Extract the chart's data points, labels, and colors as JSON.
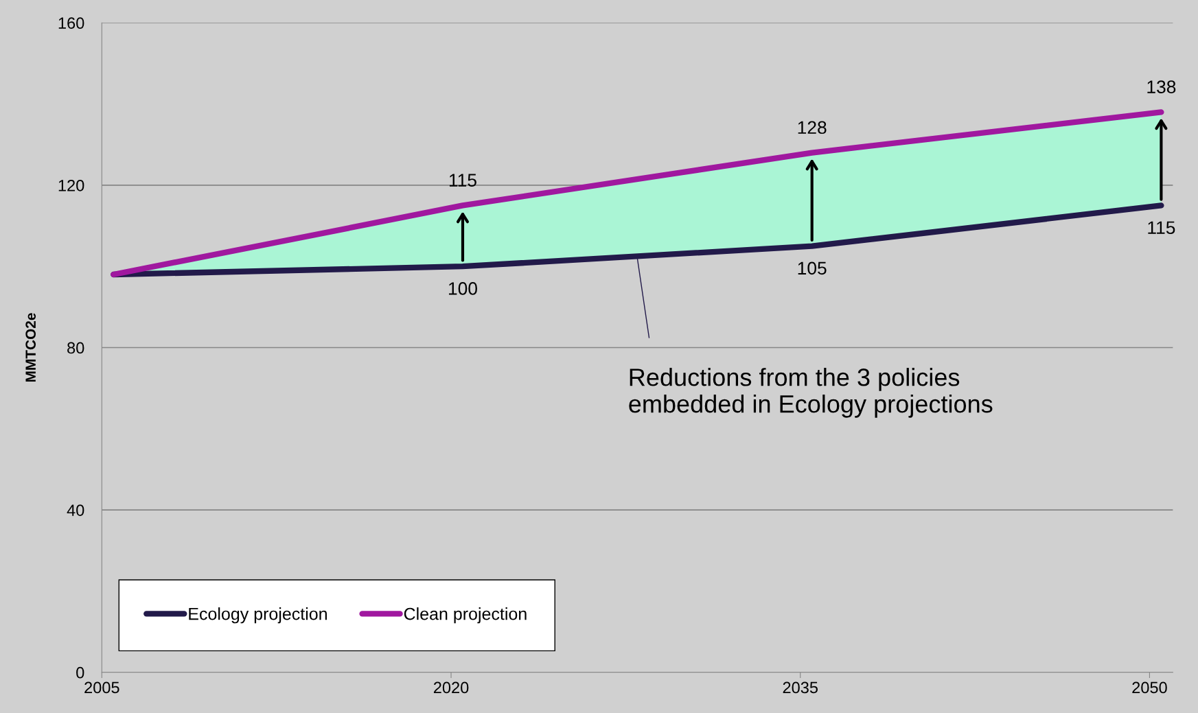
{
  "chart_data": {
    "type": "line",
    "ylabel": "MMTCO2e",
    "x": [
      2005.5,
      2020.5,
      2035.5,
      2050.5
    ],
    "xlim": [
      2005,
      2051
    ],
    "xticks": [
      2005,
      2020,
      2035,
      2050
    ],
    "ylim": [
      0,
      160
    ],
    "yticks": [
      0,
      40,
      80,
      120,
      160
    ],
    "grid": "y",
    "legend": "bottom left",
    "marker": "none",
    "line_style": "solid",
    "series": [
      {
        "name": "Ecology projection",
        "color": "#221a4a",
        "values": [
          98,
          100,
          105,
          115
        ],
        "value_labels": [
          null,
          "100",
          "105",
          "115"
        ]
      },
      {
        "name": "Clean projection",
        "color": "#a0189f",
        "values": [
          98,
          115,
          128,
          138
        ],
        "value_labels": [
          null,
          "115",
          "128",
          "138"
        ],
        "lower": [
          98,
          100,
          105,
          115
        ],
        "upper": [
          98,
          115,
          128,
          138
        ]
      }
    ],
    "annotations": [
      {
        "text": "Reductions from the 3 policies\nembedded in Ecology projections",
        "x": 2028,
        "y": 102
      }
    ]
  }
}
